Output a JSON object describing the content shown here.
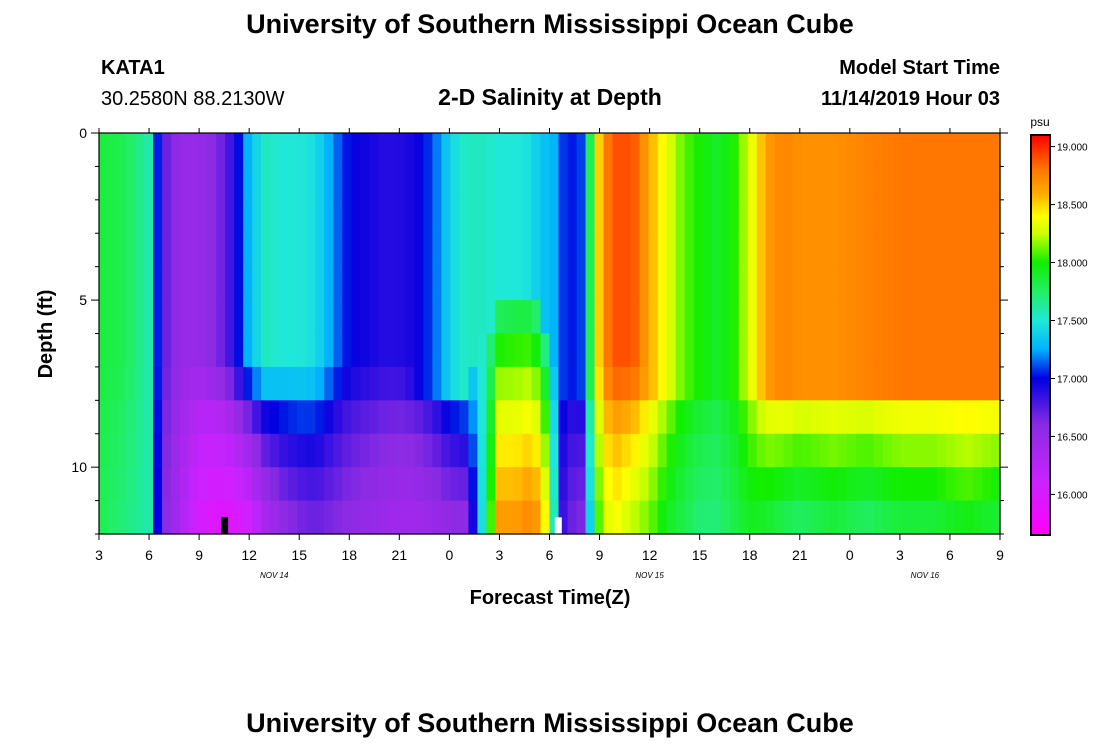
{
  "page_title": "University of Southern Mississippi Ocean Cube",
  "footer_title": "University of Southern Mississippi Ocean Cube",
  "station": {
    "id": "KATA1",
    "coords": "30.2580N 88.2130W"
  },
  "model": {
    "label": "Model Start Time",
    "time": "11/14/2019 Hour 03"
  },
  "chart_data": {
    "type": "heatmap",
    "title": "2-D Salinity at Depth",
    "xlabel": "Forecast Time(Z)",
    "ylabel": "Depth (ft)",
    "x_tick_labels": [
      "3",
      "6",
      "9",
      "12",
      "15",
      "18",
      "21",
      "0",
      "3",
      "6",
      "9",
      "12",
      "15",
      "18",
      "21",
      "0",
      "3",
      "6",
      "9"
    ],
    "date_labels": [
      {
        "text": "NOV 14",
        "at_tick": 3.5
      },
      {
        "text": "NOV 15",
        "at_tick": 11
      },
      {
        "text": "NOV 16",
        "at_tick": 16.5
      }
    ],
    "y_tick_labels": [
      "0",
      "5",
      "10"
    ],
    "y_tick_values": [
      0,
      5,
      10
    ],
    "ylim": [
      0,
      12
    ],
    "x_hours_range": [
      0,
      54
    ],
    "colorbar": {
      "unit": "psu",
      "range": [
        15.65,
        19.1
      ],
      "tick_labels": [
        "19.000",
        "18.500",
        "18.000",
        "17.500",
        "17.000",
        "16.500",
        "16.000"
      ],
      "tick_values": [
        19.0,
        18.5,
        18.0,
        17.5,
        17.0,
        16.5,
        16.0
      ],
      "stops": [
        {
          "v": 15.65,
          "c": "#ff00ff"
        },
        {
          "v": 16.1,
          "c": "#cc22ff"
        },
        {
          "v": 16.6,
          "c": "#8a2be2"
        },
        {
          "v": 17.0,
          "c": "#0000e0"
        },
        {
          "v": 17.25,
          "c": "#00b0ff"
        },
        {
          "v": 17.5,
          "c": "#20e8d8"
        },
        {
          "v": 17.75,
          "c": "#22ee66"
        },
        {
          "v": 18.0,
          "c": "#11ee00"
        },
        {
          "v": 18.25,
          "c": "#ccff00"
        },
        {
          "v": 18.4,
          "c": "#ffff00"
        },
        {
          "v": 18.6,
          "c": "#ffaa00"
        },
        {
          "v": 18.8,
          "c": "#ff7700"
        },
        {
          "v": 19.1,
          "c": "#ff0000"
        }
      ]
    },
    "time_hours": [
      0,
      1.5,
      3,
      3.5,
      4,
      5,
      6,
      7,
      8,
      9,
      10,
      11,
      12,
      13,
      14,
      15,
      16,
      17,
      18,
      19,
      20,
      21,
      22,
      23,
      24,
      25,
      26,
      26.5,
      27,
      27.5,
      28,
      29,
      29.5,
      30,
      30.5,
      31,
      32,
      33,
      34,
      35,
      36,
      37,
      38,
      39,
      40,
      41,
      42,
      44,
      46,
      48,
      50,
      52,
      54
    ],
    "salinity_surface": [
      17.85,
      17.8,
      17.6,
      17.05,
      16.7,
      16.5,
      16.5,
      16.6,
      16.85,
      17.3,
      17.55,
      17.5,
      17.5,
      17.45,
      17.2,
      17.0,
      16.95,
      16.9,
      16.9,
      16.95,
      17.1,
      17.4,
      17.55,
      17.55,
      17.5,
      17.5,
      17.45,
      17.3,
      17.35,
      17.2,
      17.0,
      17.1,
      17.9,
      18.55,
      18.8,
      18.9,
      18.9,
      18.6,
      18.35,
      18.1,
      18.0,
      17.9,
      18.0,
      18.3,
      18.65,
      18.75,
      18.7,
      18.7,
      18.75,
      18.8,
      18.8,
      18.8,
      18.8
    ],
    "salinity_bottom": [
      17.8,
      17.7,
      17.6,
      17.0,
      16.6,
      16.3,
      16.0,
      15.9,
      15.9,
      16.0,
      16.3,
      16.5,
      16.6,
      16.65,
      16.6,
      16.55,
      16.5,
      16.45,
      16.4,
      16.4,
      16.45,
      16.5,
      16.5,
      17.5,
      18.7,
      18.7,
      18.8,
      18.6,
      18.3,
      17.0,
      16.7,
      16.6,
      17.5,
      18.1,
      18.3,
      18.35,
      18.2,
      18.1,
      17.9,
      17.8,
      17.7,
      17.7,
      17.8,
      17.9,
      17.85,
      17.75,
      17.7,
      17.8,
      17.7,
      17.8,
      17.8,
      17.9,
      17.8
    ],
    "mixing_depth_ft": [
      7.3,
      7.3,
      7.3,
      7.3,
      7.3,
      7.3,
      7.3,
      7.3,
      7.3,
      7.3,
      7.3,
      7.3,
      7.3,
      7.3,
      7.3,
      7.3,
      7.3,
      7.3,
      7.3,
      7.5,
      7.5,
      7.5,
      7.5,
      6.0,
      5.0,
      4.8,
      4.8,
      5.0,
      6.5,
      7.5,
      7.6,
      7.6,
      7.5,
      7.4,
      7.4,
      7.4,
      7.4,
      7.5,
      7.5,
      7.5,
      7.5,
      7.6,
      7.6,
      7.6,
      7.6,
      7.6,
      7.6,
      7.6,
      7.5,
      7.5,
      7.5,
      7.5,
      7.5
    ],
    "markers": [
      {
        "hour": 7.5,
        "color": "#000000"
      },
      {
        "hour": 27.5,
        "color": "#ffffff"
      }
    ]
  }
}
